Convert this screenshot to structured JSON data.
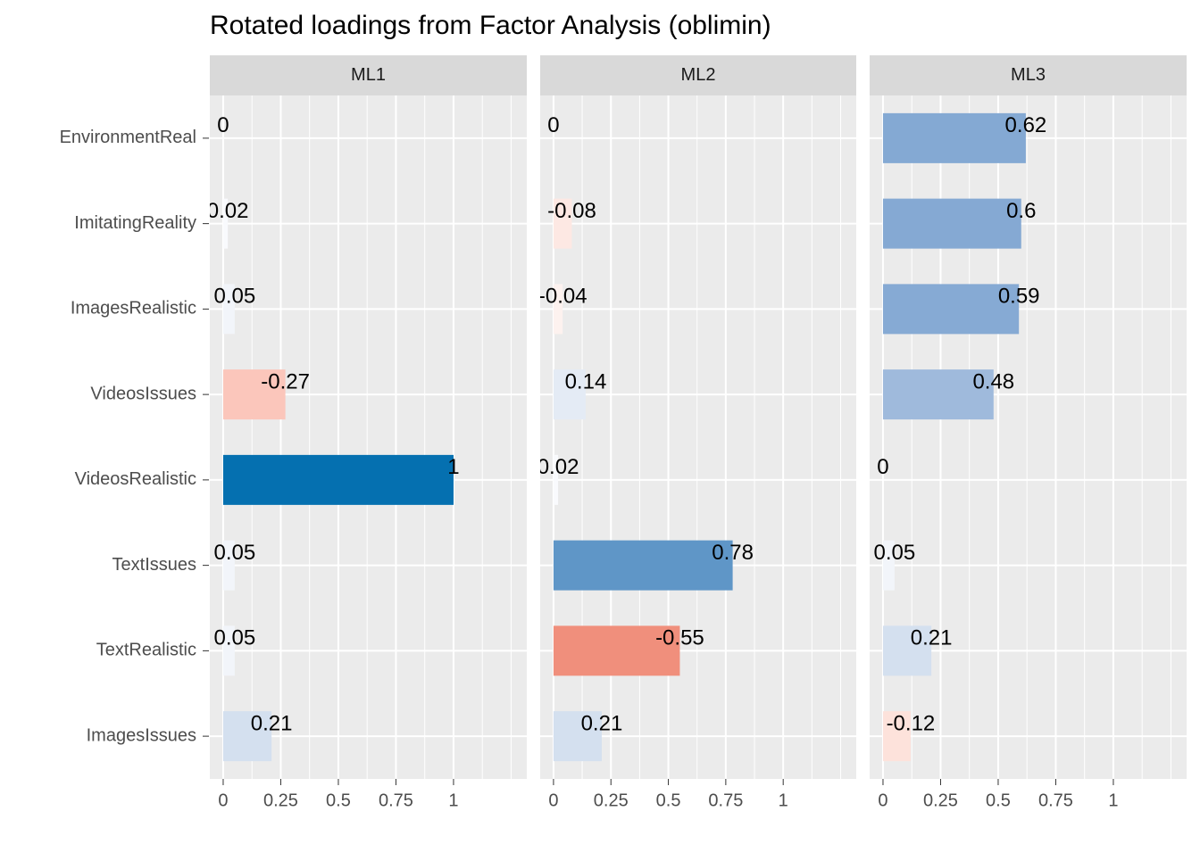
{
  "chart_data": {
    "type": "bar",
    "title": "Rotated loadings from Factor Analysis (oblimin)",
    "categories": [
      "EnvironmentReal",
      "ImitatingReality",
      "ImagesRealistic",
      "VideosIssues",
      "VideosRealistic",
      "TextIssues",
      "TextRealistic",
      "ImagesIssues"
    ],
    "facets": [
      {
        "name": "ML1",
        "values": [
          0,
          0.02,
          0.05,
          -0.27,
          1,
          0.05,
          0.05,
          0.21
        ],
        "colors": [
          "#ffffff",
          "#f9fafd",
          "#f2f5fa",
          "#fbc6bb",
          "#0570b0",
          "#f2f5fa",
          "#f2f5fa",
          "#d4e0ef"
        ]
      },
      {
        "name": "ML2",
        "values": [
          0,
          -0.08,
          -0.04,
          0.14,
          0.02,
          0.78,
          -0.55,
          0.21
        ],
        "colors": [
          "#ffffff",
          "#fde8e3",
          "#fdf2ef",
          "#e4ebf5",
          "#f9fafd",
          "#5f96c7",
          "#f08f7c",
          "#d4e0ef"
        ]
      },
      {
        "name": "ML3",
        "values": [
          0.62,
          0.6,
          0.59,
          0.48,
          0,
          0.05,
          0.21,
          -0.12
        ],
        "colors": [
          "#84a9d3",
          "#85a9d3",
          "#86aad4",
          "#9fbadc",
          "#ffffff",
          "#f2f5fa",
          "#d4e0ef",
          "#fde2db"
        ]
      }
    ],
    "xlim": [
      -0.058,
      1.318
    ],
    "xticks": [
      0,
      0.25,
      0.5,
      0.75,
      1
    ],
    "grid": true
  }
}
